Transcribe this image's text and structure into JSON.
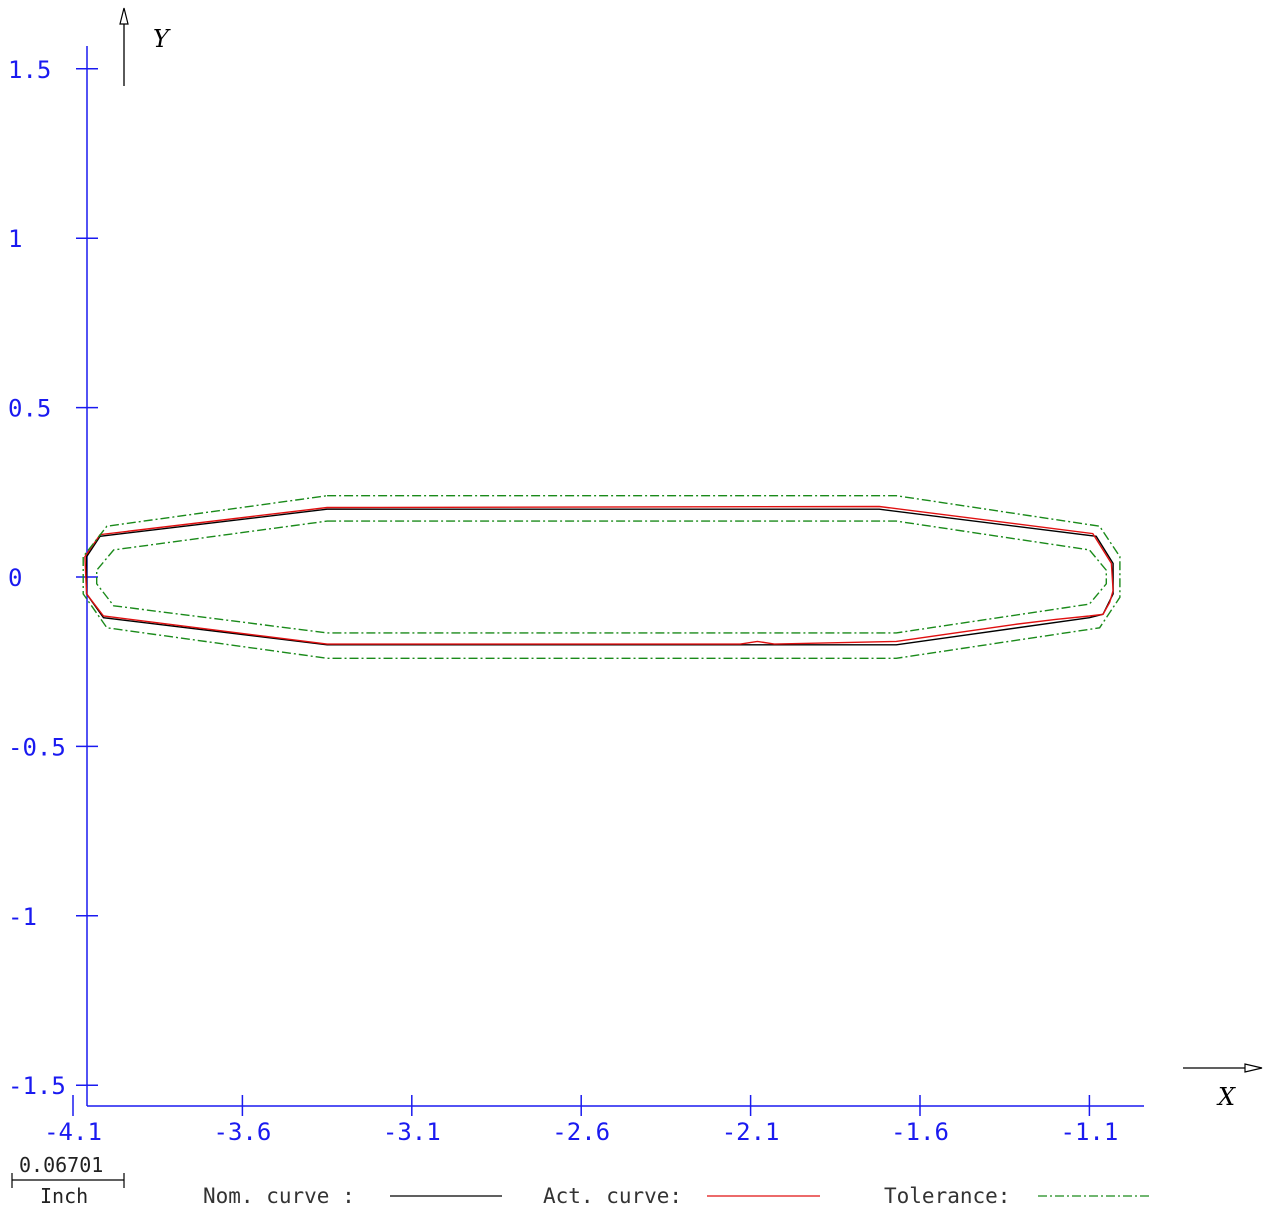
{
  "chart_data": {
    "type": "line",
    "xlabel": "X",
    "ylabel": "Y",
    "xlim": [
      -4.1,
      -0.9
    ],
    "ylim": [
      -1.56,
      1.56
    ],
    "x_ticks": [
      -4.1,
      -3.6,
      -3.1,
      -2.6,
      -2.1,
      -1.6,
      -1.1
    ],
    "x_tick_labels": [
      "-4.1",
      "-3.6",
      "-3.1",
      "-2.6",
      "-2.1",
      "-1.6",
      "-1.1"
    ],
    "y_ticks": [
      1.5,
      1,
      0.5,
      0,
      -0.5,
      -1,
      -1.5
    ],
    "y_tick_labels": [
      "1.5",
      "1",
      "0.5",
      "0",
      "-0.5",
      "-1",
      "-1.5"
    ],
    "scale": {
      "value": "0.06701",
      "unit": "Inch"
    },
    "legend": [
      {
        "label": "Nom. curve :",
        "color": "#000000",
        "dash": "solid"
      },
      {
        "label": "Act. curve:",
        "color": "#e01010",
        "dash": "solid"
      },
      {
        "label": "Tolerance:",
        "color": "#1a8a1a",
        "dash": "dashdot"
      }
    ],
    "series": [
      {
        "name": "Nom. curve",
        "color": "#000000",
        "closed": true,
        "x": [
          -3.35,
          -1.72,
          -1.08,
          -1.03,
          -1.03,
          -1.06,
          -1.1,
          -1.67,
          -3.35,
          -4.01,
          -4.06,
          -4.06,
          -4.02
        ],
        "y": [
          0.2,
          0.2,
          0.12,
          0.04,
          -0.05,
          -0.11,
          -0.12,
          -0.2,
          -0.2,
          -0.12,
          -0.05,
          0.06,
          0.12
        ]
      },
      {
        "name": "Act. curve",
        "color": "#e01010",
        "closed": true,
        "x": [
          -3.35,
          -1.72,
          -1.09,
          -1.035,
          -1.03,
          -1.04,
          -1.06,
          -1.1,
          -1.2,
          -1.32,
          -1.67,
          -2.03,
          -2.08,
          -2.13,
          -3.35,
          -4.01,
          -4.06,
          -4.065,
          -4.02
        ],
        "y": [
          0.205,
          0.208,
          0.128,
          0.04,
          -0.04,
          -0.075,
          -0.11,
          -0.115,
          -0.125,
          -0.14,
          -0.19,
          -0.198,
          -0.19,
          -0.198,
          -0.198,
          -0.115,
          -0.05,
          0.06,
          0.125
        ]
      },
      {
        "name": "Tolerance outer",
        "color": "#1a8a1a",
        "closed": true,
        "x": [
          -3.35,
          -1.67,
          -1.07,
          -1.01,
          -1.01,
          -1.07,
          -1.67,
          -3.35,
          -4.0,
          -4.07,
          -4.07,
          -4.0
        ],
        "y": [
          0.24,
          0.24,
          0.15,
          0.06,
          -0.06,
          -0.15,
          -0.24,
          -0.24,
          -0.15,
          -0.05,
          0.06,
          0.15
        ]
      },
      {
        "name": "Tolerance inner",
        "color": "#1a8a1a",
        "closed": true,
        "x": [
          -3.35,
          -1.67,
          -1.1,
          -1.05,
          -1.05,
          -1.1,
          -1.67,
          -3.35,
          -3.98,
          -4.03,
          -4.03,
          -3.98
        ],
        "y": [
          0.165,
          0.165,
          0.08,
          0.02,
          -0.02,
          -0.08,
          -0.165,
          -0.165,
          -0.085,
          -0.02,
          0.02,
          0.08
        ]
      }
    ]
  }
}
